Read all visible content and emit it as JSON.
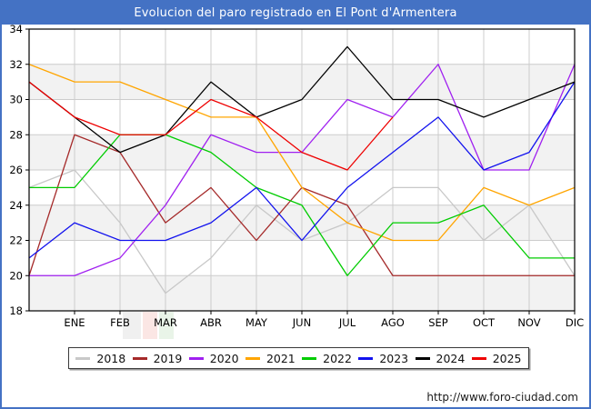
{
  "footer": {
    "url": "http://www.foro-ciudad.com"
  },
  "colors": {
    "frame": "#4472C4",
    "titlebar_text": "#FFFFFF",
    "plot_band": "#F2F2F2",
    "gridline": "#CCCCCC",
    "axis": "#000000"
  },
  "chart_data": {
    "type": "line",
    "title": "Evolucion del paro registrado en El Pont d'Armentera",
    "categories": [
      "",
      "ENE",
      "FEB",
      "MAR",
      "ABR",
      "MAY",
      "JUN",
      "JUL",
      "AGO",
      "SEP",
      "OCT",
      "NOV",
      "DIC"
    ],
    "x_note": "first value of each series is plotted on the y-axis, before ENE",
    "ylim": [
      18,
      34
    ],
    "yticks": [
      18,
      20,
      22,
      24,
      26,
      28,
      30,
      32,
      34
    ],
    "grid": true,
    "legend_position": "bottom",
    "series": [
      {
        "name": "2018",
        "color": "#C8C8C8",
        "values": [
          25,
          26,
          23,
          19,
          21,
          24,
          22,
          23,
          25,
          25,
          22,
          24,
          20
        ]
      },
      {
        "name": "2019",
        "color": "#A52A2A",
        "values": [
          20,
          28,
          27,
          23,
          25,
          22,
          25,
          24,
          20,
          20,
          20,
          20,
          20
        ]
      },
      {
        "name": "2020",
        "color": "#A020F0",
        "values": [
          20,
          20,
          21,
          24,
          28,
          27,
          27,
          30,
          29,
          32,
          26,
          26,
          32
        ]
      },
      {
        "name": "2021",
        "color": "#FFA500",
        "values": [
          32,
          31,
          31,
          30,
          29,
          29,
          25,
          23,
          22,
          22,
          25,
          24,
          25
        ]
      },
      {
        "name": "2022",
        "color": "#00CC00",
        "values": [
          25,
          25,
          28,
          28,
          27,
          25,
          24,
          20,
          23,
          23,
          24,
          21,
          21
        ]
      },
      {
        "name": "2023",
        "color": "#1212EE",
        "values": [
          21,
          23,
          22,
          22,
          23,
          25,
          22,
          25,
          27,
          29,
          26,
          27,
          31
        ]
      },
      {
        "name": "2024",
        "color": "#000000",
        "values": [
          31,
          29,
          27,
          28,
          31,
          29,
          30,
          33,
          30,
          30,
          29,
          30,
          31
        ]
      },
      {
        "name": "2025",
        "color": "#EE0000",
        "values": [
          31,
          29,
          28,
          28,
          30,
          29,
          27,
          26,
          29
        ]
      }
    ]
  }
}
